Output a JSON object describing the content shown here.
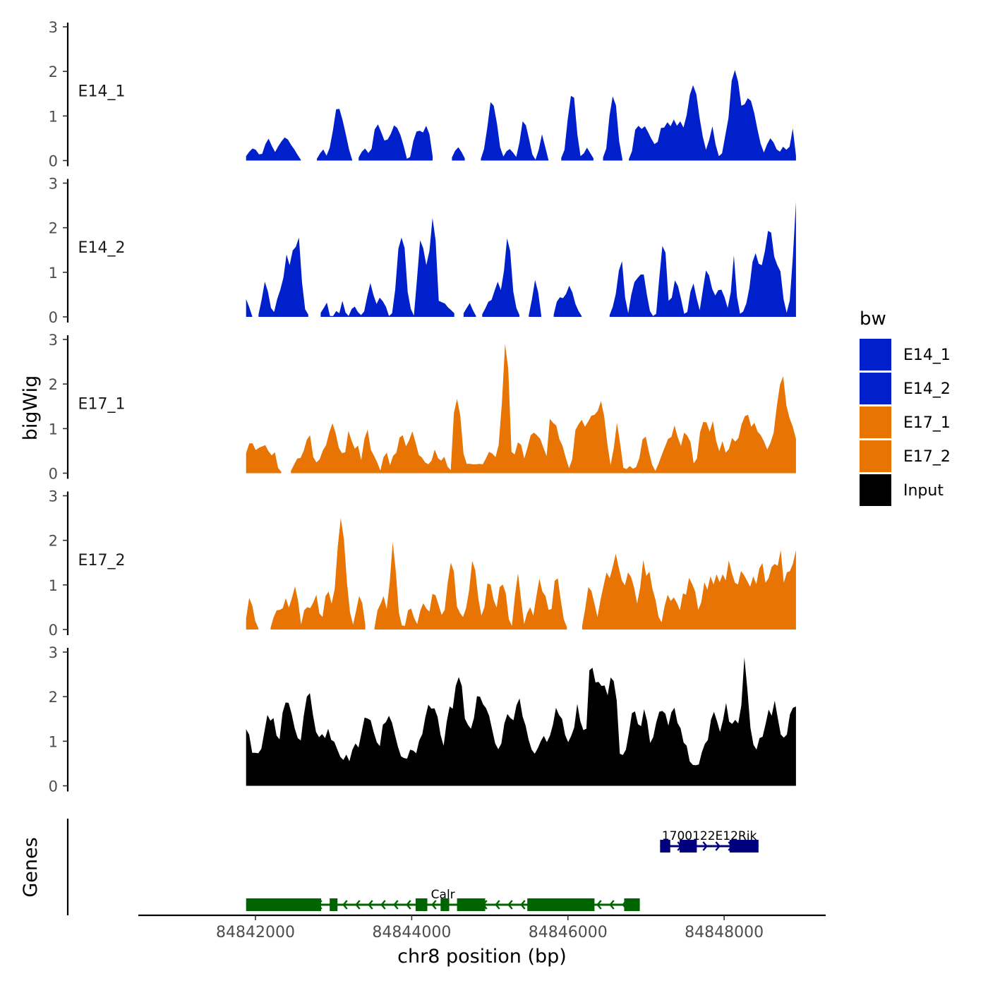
{
  "chart_data": {
    "type": "area",
    "ylabel": "bigWig",
    "genes_label": "Genes",
    "xlabel": "chr8 position (bp)",
    "x_ticks": [
      84842000,
      84844000,
      84846000,
      84848000
    ],
    "x_tick_labels": [
      "84842000",
      "84844000",
      "84846000",
      "84848000"
    ],
    "xlim": [
      84840500,
      84849300
    ],
    "track_xrange": [
      84841880,
      84848920
    ],
    "ylim": [
      0,
      3
    ],
    "y_ticks": [
      0,
      1,
      2,
      3
    ],
    "y_tick_labels": [
      "0",
      "1",
      "2",
      "3"
    ],
    "legend": {
      "title": "bw",
      "entries": [
        {
          "label": "E14_1",
          "color": "#0020CC"
        },
        {
          "label": "E14_2",
          "color": "#0020CC"
        },
        {
          "label": "E17_1",
          "color": "#E87404"
        },
        {
          "label": "E17_2",
          "color": "#E87404"
        },
        {
          "label": "Input",
          "color": "#000000"
        }
      ]
    },
    "series": [
      {
        "name": "E14_1",
        "color": "#0020CC",
        "values": [
          0.1,
          0.2,
          0.27,
          0.24,
          0.14,
          0.15,
          0.37,
          0.49,
          0.33,
          0.19,
          0.32,
          0.43,
          0.52,
          0.47,
          0.35,
          0.25,
          0.13,
          0.02,
          null,
          null,
          null,
          null,
          0.04,
          0.16,
          0.25,
          0.11,
          0.29,
          0.68,
          1.15,
          1.16,
          0.91,
          0.59,
          0.25,
          0.01,
          null,
          0.07,
          0.2,
          0.27,
          0.17,
          0.26,
          0.7,
          0.81,
          0.64,
          0.45,
          0.47,
          0.6,
          0.79,
          0.73,
          0.57,
          0.33,
          0.04,
          0.08,
          0.44,
          0.65,
          0.67,
          0.63,
          0.78,
          0.59,
          0.1,
          null,
          null,
          null,
          null,
          null,
          0.07,
          0.22,
          0.3,
          0.19,
          0.05,
          null,
          null,
          null,
          null,
          0.04,
          0.26,
          0.74,
          1.31,
          1.23,
          0.83,
          0.3,
          0.09,
          0.21,
          0.26,
          0.18,
          0.08,
          0.41,
          0.88,
          0.79,
          0.48,
          0.14,
          0.02,
          0.24,
          0.59,
          0.31,
          0.02,
          null,
          null,
          null,
          0.06,
          0.24,
          0.92,
          1.45,
          1.41,
          0.59,
          0.1,
          0.16,
          0.29,
          0.17,
          0.05,
          null,
          null,
          0.07,
          0.27,
          1.01,
          1.44,
          1.24,
          0.44,
          0.03,
          null,
          0.03,
          0.21,
          0.69,
          0.78,
          0.71,
          0.77,
          0.64,
          0.49,
          0.37,
          0.42,
          0.73,
          0.74,
          0.86,
          0.77,
          0.92,
          0.78,
          0.88,
          0.74,
          1.02,
          1.48,
          1.69,
          1.49,
          0.97,
          0.54,
          0.24,
          0.46,
          0.77,
          0.36,
          0.1,
          0.16,
          0.56,
          0.95,
          1.79,
          2.03,
          1.77,
          1.23,
          1.26,
          1.4,
          1.34,
          1.07,
          0.7,
          0.38,
          0.18,
          0.36,
          0.5,
          0.41,
          0.25,
          0.2,
          0.31,
          0.24,
          0.31,
          0.72,
          0.11
        ],
        "label": "E14_1"
      },
      {
        "name": "E14_2",
        "color": "#0020CC",
        "values": [
          0.4,
          0.22,
          0.01,
          null,
          0.05,
          0.39,
          0.79,
          0.57,
          0.2,
          0.11,
          0.4,
          0.61,
          0.88,
          1.4,
          1.16,
          1.49,
          1.57,
          1.78,
          0.77,
          0.17,
          0.05,
          null,
          null,
          null,
          0.09,
          0.2,
          0.32,
          0.02,
          0.02,
          0.13,
          0.08,
          0.36,
          0.1,
          0.02,
          0.18,
          0.23,
          0.11,
          0.04,
          0.12,
          0.46,
          0.76,
          0.49,
          0.29,
          0.43,
          0.35,
          0.23,
          0.02,
          0.08,
          0.61,
          1.53,
          1.78,
          1.55,
          0.56,
          0.18,
          0.03,
          0.85,
          1.72,
          1.54,
          1.16,
          1.48,
          2.22,
          1.71,
          0.36,
          0.33,
          0.3,
          0.21,
          0.15,
          0.08,
          null,
          null,
          0.08,
          0.2,
          0.31,
          0.15,
          0.02,
          null,
          0.06,
          0.19,
          0.34,
          0.38,
          0.59,
          0.79,
          0.6,
          1.03,
          1.76,
          1.48,
          0.57,
          0.2,
          0.04,
          null,
          null,
          0.04,
          0.39,
          0.83,
          0.55,
          0.03,
          null,
          null,
          null,
          0.05,
          0.34,
          0.44,
          0.42,
          0.52,
          0.7,
          0.55,
          0.29,
          0.13,
          0.02,
          null,
          null,
          null,
          null,
          null,
          null,
          null,
          null,
          0.04,
          0.22,
          0.52,
          1.04,
          1.25,
          0.43,
          0.08,
          0.5,
          0.78,
          0.87,
          0.95,
          0.95,
          0.5,
          0.13,
          0.02,
          0.07,
          0.87,
          1.59,
          1.44,
          0.36,
          0.43,
          0.82,
          0.69,
          0.4,
          0.07,
          0.11,
          0.56,
          0.75,
          0.42,
          0.15,
          0.6,
          1.04,
          0.93,
          0.63,
          0.48,
          0.6,
          0.61,
          0.44,
          0.2,
          0.55,
          1.38,
          0.45,
          0.07,
          0.12,
          0.3,
          0.65,
          1.23,
          1.43,
          1.19,
          1.16,
          1.48,
          1.93,
          1.89,
          1.35,
          1.16,
          1.02,
          0.4,
          0.09,
          0.37,
          1.35,
          2.58
        ],
        "label": "E14_2"
      },
      {
        "name": "E17_1",
        "color": "#E87404",
        "values": [
          0.45,
          0.67,
          0.67,
          0.52,
          0.57,
          0.6,
          0.63,
          0.49,
          0.4,
          0.47,
          0.12,
          0.03,
          null,
          null,
          0.05,
          0.19,
          0.33,
          0.34,
          0.5,
          0.75,
          0.85,
          0.36,
          0.24,
          0.31,
          0.51,
          0.63,
          0.91,
          1.12,
          0.9,
          0.57,
          0.45,
          0.47,
          0.95,
          0.73,
          0.55,
          0.62,
          0.29,
          0.77,
          0.98,
          0.53,
          0.39,
          0.24,
          0.06,
          0.36,
          0.46,
          0.18,
          0.39,
          0.46,
          0.8,
          0.85,
          0.6,
          0.74,
          0.94,
          0.69,
          0.41,
          0.35,
          0.24,
          0.2,
          0.28,
          0.53,
          0.34,
          0.28,
          0.37,
          0.15,
          0.07,
          1.35,
          1.67,
          1.28,
          0.44,
          0.21,
          0.21,
          0.2,
          0.2,
          0.21,
          0.2,
          0.33,
          0.48,
          0.44,
          0.36,
          0.63,
          1.58,
          2.9,
          2.34,
          0.48,
          0.42,
          0.69,
          0.64,
          0.33,
          0.57,
          0.85,
          0.91,
          0.85,
          0.77,
          0.57,
          0.38,
          1.22,
          1.13,
          1.07,
          0.76,
          0.61,
          0.34,
          0.11,
          0.31,
          0.97,
          1.1,
          1.2,
          1.04,
          1.16,
          1.29,
          1.31,
          1.4,
          1.62,
          1.28,
          0.65,
          0.18,
          0.56,
          1.13,
          0.66,
          0.12,
          0.09,
          0.16,
          0.1,
          0.14,
          0.34,
          0.76,
          0.82,
          0.47,
          0.19,
          0.05,
          0.21,
          0.41,
          0.59,
          0.77,
          0.81,
          1.07,
          0.81,
          0.61,
          0.91,
          0.84,
          0.7,
          0.22,
          0.33,
          0.92,
          1.15,
          1.14,
          0.93,
          1.17,
          0.73,
          0.49,
          0.72,
          0.46,
          0.54,
          0.79,
          0.71,
          0.79,
          1.1,
          1.28,
          1.31,
          1.04,
          1.13,
          0.93,
          0.85,
          0.71,
          0.53,
          0.68,
          0.9,
          1.51,
          1.99,
          2.17,
          1.51,
          1.23,
          1.04,
          0.77
        ],
        "label": "E17_1"
      },
      {
        "name": "E17_2",
        "color": "#E87404",
        "values": [
          0.25,
          0.71,
          0.54,
          0.19,
          0.03,
          null,
          null,
          null,
          0.04,
          0.27,
          0.43,
          0.44,
          0.48,
          0.7,
          0.49,
          0.71,
          0.97,
          0.65,
          0.11,
          0.43,
          0.5,
          0.48,
          0.61,
          0.78,
          0.36,
          0.28,
          0.75,
          0.85,
          0.58,
          0.91,
          1.86,
          2.5,
          2.03,
          1.06,
          0.39,
          0.11,
          0.42,
          0.75,
          0.6,
          0.11,
          null,
          null,
          0.03,
          0.43,
          0.57,
          0.75,
          0.46,
          1.05,
          1.96,
          1.29,
          0.38,
          0.09,
          0.08,
          0.43,
          0.47,
          0.26,
          0.12,
          0.42,
          0.59,
          0.47,
          0.4,
          0.8,
          0.77,
          0.55,
          0.33,
          0.44,
          1.05,
          1.5,
          1.3,
          0.52,
          0.37,
          0.28,
          0.48,
          0.87,
          1.54,
          1.33,
          0.71,
          0.31,
          0.5,
          1.03,
          1.01,
          0.67,
          0.49,
          0.95,
          1.01,
          0.81,
          0.23,
          0.08,
          0.76,
          1.26,
          0.68,
          0.12,
          0.37,
          0.5,
          0.31,
          0.74,
          1.14,
          0.85,
          0.75,
          0.44,
          0.46,
          1.09,
          1.15,
          0.66,
          0.23,
          0.05,
          null,
          null,
          null,
          null,
          0.08,
          0.46,
          0.95,
          0.87,
          0.59,
          0.28,
          0.66,
          0.98,
          1.28,
          1.15,
          1.4,
          1.7,
          1.38,
          1.1,
          0.99,
          1.28,
          1.18,
          0.94,
          0.58,
          0.95,
          1.56,
          1.2,
          1.3,
          0.91,
          0.67,
          0.29,
          0.16,
          0.53,
          0.78,
          0.64,
          0.72,
          0.6,
          0.43,
          0.81,
          0.78,
          1.16,
          1.02,
          0.85,
          0.44,
          0.61,
          1.06,
          0.89,
          1.19,
          1.01,
          1.24,
          1.06,
          1.24,
          1.1,
          1.55,
          1.27,
          1.05,
          1.01,
          1.31,
          1.22,
          1.09,
          0.96,
          1.19,
          1.02,
          1.37,
          1.49,
          1.05,
          1.15,
          1.4,
          1.47,
          1.43,
          1.78,
          1.05,
          1.28,
          1.31,
          1.48,
          1.78
        ],
        "label": "E17_2"
      },
      {
        "name": "Input",
        "color": "#000000",
        "values": [
          1.27,
          1.15,
          0.74,
          0.74,
          0.73,
          0.83,
          1.21,
          1.59,
          1.46,
          1.52,
          1.13,
          1.04,
          1.64,
          1.87,
          1.86,
          1.61,
          1.29,
          1.07,
          1.02,
          1.58,
          2.0,
          2.08,
          1.59,
          1.21,
          1.09,
          1.16,
          1.07,
          1.28,
          1.03,
          0.99,
          0.82,
          0.65,
          0.58,
          0.7,
          0.55,
          0.81,
          0.95,
          0.86,
          1.19,
          1.53,
          1.51,
          1.47,
          1.21,
          0.98,
          0.89,
          1.37,
          1.43,
          1.57,
          1.42,
          1.14,
          0.87,
          0.66,
          0.62,
          0.61,
          0.81,
          0.79,
          0.73,
          1.02,
          1.16,
          1.54,
          1.82,
          1.73,
          1.74,
          1.55,
          1.14,
          0.9,
          1.43,
          1.78,
          1.73,
          2.24,
          2.44,
          2.24,
          1.51,
          1.37,
          1.28,
          1.52,
          2.01,
          2.0,
          1.83,
          1.74,
          1.57,
          1.26,
          0.95,
          0.82,
          0.95,
          1.4,
          1.61,
          1.52,
          1.47,
          1.81,
          1.96,
          1.56,
          1.35,
          1.03,
          0.81,
          0.72,
          0.84,
          1.0,
          1.12,
          0.98,
          1.12,
          1.37,
          1.75,
          1.59,
          1.5,
          1.14,
          0.98,
          1.12,
          1.31,
          1.84,
          1.45,
          1.25,
          1.28,
          2.59,
          2.65,
          2.32,
          2.33,
          2.24,
          2.25,
          2.03,
          2.43,
          2.35,
          1.91,
          0.72,
          0.69,
          0.81,
          1.19,
          1.63,
          1.67,
          1.38,
          1.34,
          1.72,
          1.45,
          0.96,
          1.09,
          1.42,
          1.66,
          1.68,
          1.62,
          1.35,
          1.65,
          1.75,
          1.41,
          1.29,
          0.97,
          0.9,
          0.55,
          0.47,
          0.46,
          0.48,
          0.75,
          0.94,
          1.03,
          1.48,
          1.66,
          1.45,
          1.21,
          1.48,
          1.86,
          1.44,
          1.39,
          1.48,
          1.4,
          1.81,
          2.88,
          2.15,
          1.3,
          0.92,
          0.81,
          1.07,
          1.1,
          1.39,
          1.71,
          1.57,
          1.91,
          1.52,
          1.15,
          1.08,
          1.15,
          1.6,
          1.75,
          1.78
        ]
      }
    ],
    "genes": [
      {
        "name": "1700122E12Rik",
        "color": "#00007F",
        "strand": "+",
        "start": 84847180,
        "end": 84848440,
        "exons": [
          [
            84847180,
            84847310
          ],
          [
            84847430,
            84847650
          ],
          [
            84848070,
            84848440
          ]
        ]
      },
      {
        "name": "Calr",
        "color": "#006400",
        "strand": "-",
        "start": 84841880,
        "end": 84846920,
        "exons": [
          [
            84841880,
            84842840
          ],
          [
            84842950,
            84843050
          ],
          [
            84844050,
            84844200
          ],
          [
            84844370,
            84844480
          ],
          [
            84844580,
            84844940
          ],
          [
            84845480,
            84846340
          ],
          [
            84846720,
            84846920
          ]
        ]
      }
    ]
  }
}
